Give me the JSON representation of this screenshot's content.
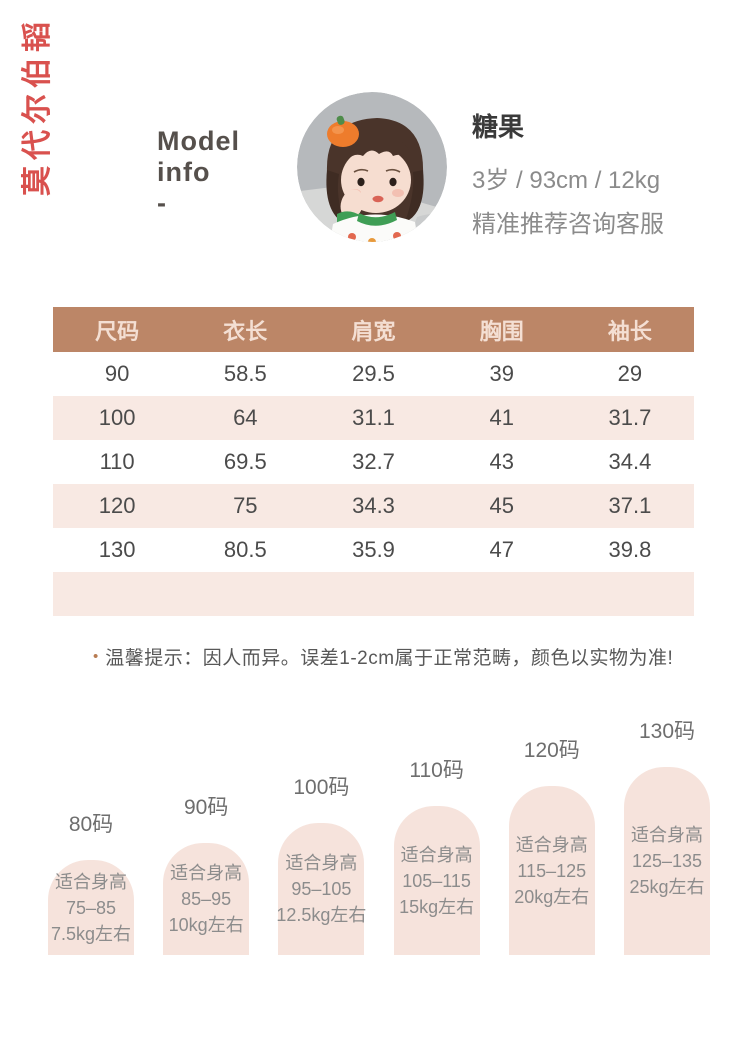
{
  "brand": {
    "vertical_text": "莫代尔伯韬",
    "color": "#d9514e"
  },
  "model": {
    "heading": {
      "line1": "Model",
      "line2": "info",
      "line3": "-"
    },
    "name": "糖果",
    "stats": "3岁 / 93cm / 12kg",
    "note": "精准推荐咨询客服",
    "photo_icon": "child-model-photo"
  },
  "size_table": {
    "headers": [
      "尺码",
      "衣长",
      "肩宽",
      "胸围",
      "袖长"
    ],
    "rows": [
      [
        "90",
        "58.5",
        "29.5",
        "39",
        "29"
      ],
      [
        "100",
        "64",
        "31.1",
        "41",
        "31.7"
      ],
      [
        "110",
        "69.5",
        "32.7",
        "43",
        "34.4"
      ],
      [
        "120",
        "75",
        "34.3",
        "45",
        "37.1"
      ],
      [
        "130",
        "80.5",
        "35.9",
        "47",
        "39.8"
      ]
    ],
    "colors": {
      "header_bg": "#bc8667",
      "header_text": "#f4dfd3",
      "stripe_bg": "#f8e9e3",
      "cell_text": "#4b4b4b"
    }
  },
  "tip": {
    "bullet": "•",
    "text": "温馨提示：因人而异。误差1-2cm属于正常范畴，颜色以实物为准!"
  },
  "chart_data": {
    "type": "bar",
    "title": "",
    "categories": [
      "80码",
      "90码",
      "100码",
      "110码",
      "120码",
      "130码"
    ],
    "values": [
      95,
      112,
      132,
      149,
      169,
      188
    ],
    "values_note": "relative bar heights in px, increasing by size",
    "bars": [
      {
        "size": "80码",
        "fit_label": "适合身高",
        "height_range": "75–85",
        "weight": "7.5kg左右"
      },
      {
        "size": "90码",
        "fit_label": "适合身高",
        "height_range": "85–95",
        "weight": "10kg左右"
      },
      {
        "size": "100码",
        "fit_label": "适合身高",
        "height_range": "95–105",
        "weight": "12.5kg左右"
      },
      {
        "size": "110码",
        "fit_label": "适合身高",
        "height_range": "105–115",
        "weight": "15kg左右"
      },
      {
        "size": "120码",
        "fit_label": "适合身高",
        "height_range": "115–125",
        "weight": "20kg左右"
      },
      {
        "size": "130码",
        "fit_label": "适合身高",
        "height_range": "125–135",
        "weight": "25kg左右"
      }
    ],
    "colors": {
      "bar_fill": "#f6e3dc",
      "bar_text": "#8c8c8c",
      "label_text": "#6e6e6e"
    },
    "grid": false,
    "legend": "none"
  }
}
